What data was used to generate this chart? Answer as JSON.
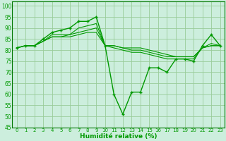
{
  "title": "",
  "xlabel": "Humidité relative (%)",
  "ylabel": "",
  "bg_color": "#cceedd",
  "grid_color": "#99cc99",
  "line_color": "#009900",
  "xlim": [
    -0.5,
    23.5
  ],
  "ylim": [
    45,
    102
  ],
  "yticks": [
    45,
    50,
    55,
    60,
    65,
    70,
    75,
    80,
    85,
    90,
    95,
    100
  ],
  "xticks": [
    0,
    1,
    2,
    3,
    4,
    5,
    6,
    7,
    8,
    9,
    10,
    11,
    12,
    13,
    14,
    15,
    16,
    17,
    18,
    19,
    20,
    21,
    22,
    23
  ],
  "series": [
    [
      81,
      82,
      82,
      85,
      88,
      89,
      90,
      93,
      93,
      95,
      82,
      60,
      51,
      61,
      61,
      72,
      72,
      70,
      76,
      76,
      75,
      82,
      87,
      82
    ],
    [
      81,
      82,
      82,
      84,
      87,
      87,
      87,
      90,
      91,
      92,
      82,
      81,
      80,
      79,
      79,
      78,
      77,
      76,
      76,
      76,
      76,
      81,
      83,
      82
    ],
    [
      81,
      82,
      82,
      84,
      86,
      86,
      87,
      88,
      89,
      90,
      82,
      82,
      81,
      80,
      80,
      79,
      78,
      77,
      77,
      77,
      77,
      81,
      82,
      82
    ],
    [
      81,
      82,
      82,
      84,
      86,
      86,
      86,
      87,
      88,
      88,
      82,
      82,
      81,
      81,
      81,
      80,
      79,
      78,
      77,
      77,
      77,
      81,
      82,
      82
    ]
  ]
}
